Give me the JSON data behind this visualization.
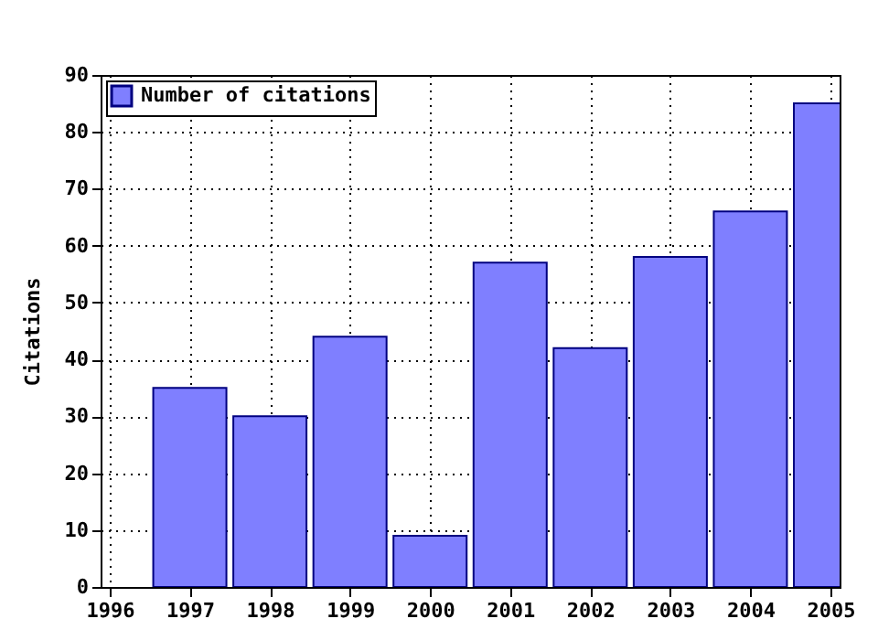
{
  "chart_data": {
    "type": "bar",
    "ylabel": "Citations",
    "x": [
      1997,
      1998,
      1999,
      2000,
      2001,
      2002,
      2003,
      2004,
      2005
    ],
    "series": [
      {
        "name": "Number of citations",
        "color": "#7f7fff",
        "values": [
          35,
          30,
          44,
          9,
          57,
          42,
          58,
          66,
          85
        ]
      }
    ],
    "xlim": [
      1996,
      2005
    ],
    "xticks": [
      1996,
      1997,
      1998,
      1999,
      2000,
      2001,
      2002,
      2003,
      2004,
      2005
    ],
    "ylim": [
      0,
      90
    ],
    "yticks": [
      0,
      10,
      20,
      30,
      40,
      50,
      60,
      70,
      80,
      90
    ],
    "grid": true,
    "legend": "top left"
  }
}
